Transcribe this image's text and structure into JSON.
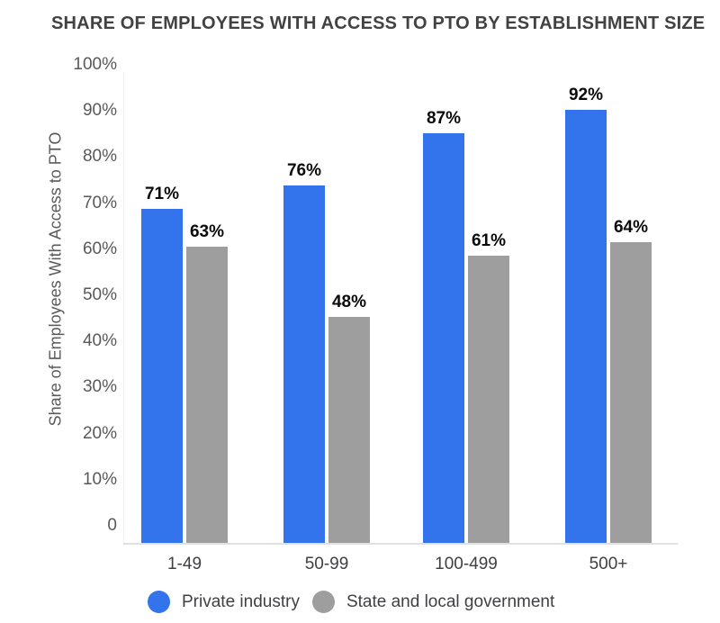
{
  "title": "SHARE OF EMPLOYEES WITH ACCESS TO PTO BY ESTABLISHMENT SIZE",
  "chart_data": {
    "type": "bar",
    "title": "SHARE OF EMPLOYEES WITH ACCESS TO PTO BY ESTABLISHMENT SIZE",
    "ylabel": "Share of Employees With Access to PTO",
    "xlabel": "",
    "categories": [
      "1-49",
      "50-99",
      "100-499",
      "500+"
    ],
    "series": [
      {
        "name": "Private industry",
        "color": "#3374EC",
        "values": [
          71,
          76,
          87,
          92
        ],
        "data_labels": [
          "71%",
          "76%",
          "87%",
          "92%"
        ]
      },
      {
        "name": "State and local government",
        "color": "#9E9E9E",
        "values": [
          63,
          48,
          61,
          64
        ],
        "data_labels": [
          "63%",
          "48%",
          "61%",
          "64%"
        ]
      }
    ],
    "y_ticks": [
      "100%",
      "90%",
      "80%",
      "70%",
      "60%",
      "50%",
      "40%",
      "30%",
      "20%",
      "10%",
      "0"
    ],
    "ylim": [
      0,
      100
    ],
    "grid": false,
    "legend_position": "bottom"
  },
  "colors": {
    "private_industry": "#3374EC",
    "state_local_government": "#9E9E9E",
    "title_text": "#424242",
    "y_tick_text": "#58595B",
    "category_text": "#3F4043",
    "data_label_text": "#0B0B0B",
    "y_axis_title_text": "#5A5A5A",
    "legend_text": "#3F4043",
    "axis_line": "#E0E0E0",
    "y_axis_line": "#F1F1F1",
    "background": "#FFFFFF"
  }
}
